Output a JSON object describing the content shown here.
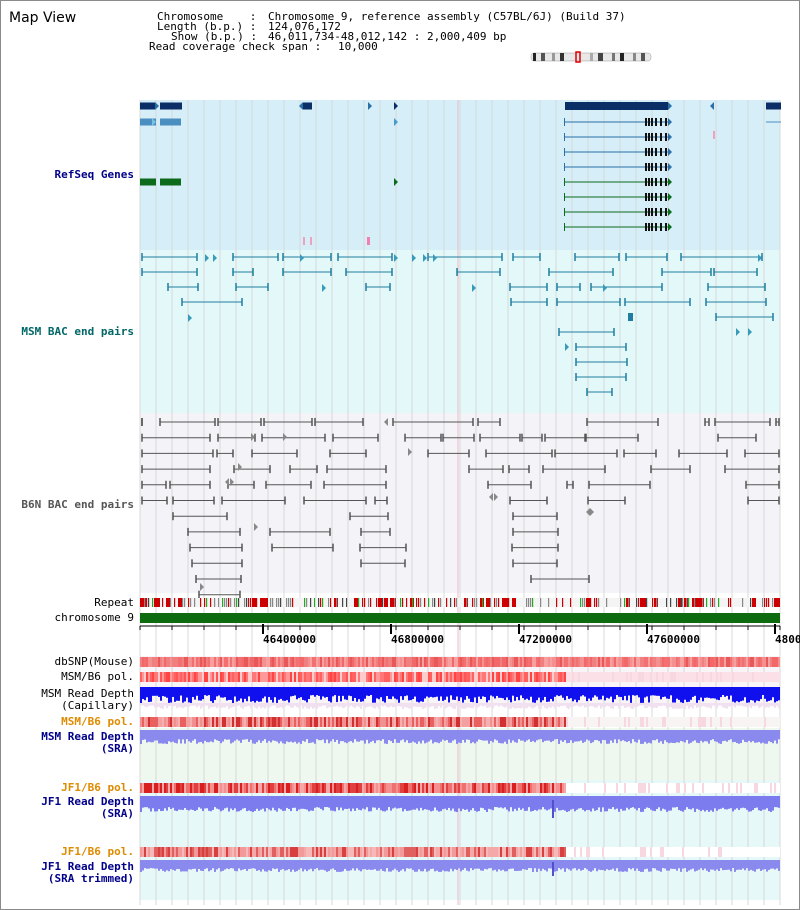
{
  "page_title": "Map View",
  "info": {
    "chromosome_label": "Chromosome    :",
    "chromosome_value": "Chromosome 9, reference assembly (C57BL/6J) (Build 37)",
    "length_label": "Length (b.p.) :",
    "length_value": "124,076,172",
    "show_label": "Show (b.p.) :",
    "show_value": "46,011,734-48,012,142 : 2,000,409 bp",
    "coverage_label": "Read coverage check span :",
    "coverage_value": "10,000"
  },
  "tracks": {
    "refseq": "RefSeq Genes",
    "msm_bac": "MSM BAC end pairs",
    "b6n_bac": "B6N BAC end pairs",
    "repeat": "Repeat",
    "chrom": "chromosome 9",
    "dbsnp": "dbSNP(Mouse)",
    "msm_b6_pol_1": "MSM/B6 pol.",
    "msm_depth_cap_1": "MSM Read Depth",
    "msm_depth_cap_2": "(Capillary)",
    "msm_b6_pol_2": "MSM/B6 pol.",
    "msm_depth_sra_1": "MSM Read Depth",
    "msm_depth_sra_2": "(SRA)",
    "jf1_pol_1": "JF1/B6 pol.",
    "jf1_depth_sra_1": "JF1 Read Depth",
    "jf1_depth_sra_2": "(SRA)",
    "jf1_pol_2": "JF1/B6 pol.",
    "jf1_depth_trim_1": "JF1 Read Depth",
    "jf1_depth_trim_2": "(SRA trimmed)"
  },
  "axis_ticks": [
    "46400000",
    "46800000",
    "47200000",
    "47600000",
    "4800"
  ],
  "colors": {
    "refseq_bg": "#d5eef8",
    "msm_bg": "#e3f8f8",
    "b6n_bg": "#f3f3f8",
    "refseq_label": "#00008b",
    "msm_label": "#006666",
    "b6n_label": "#555555",
    "pol_label": "#e08a00",
    "depth_label": "#00008b",
    "gene_dark": "#0b2e66",
    "gene_green": "#0b6b1a",
    "bac_teal": "#1f7ea0",
    "bac_gray": "#666666",
    "chrom_green": "#0f6b0f"
  }
}
